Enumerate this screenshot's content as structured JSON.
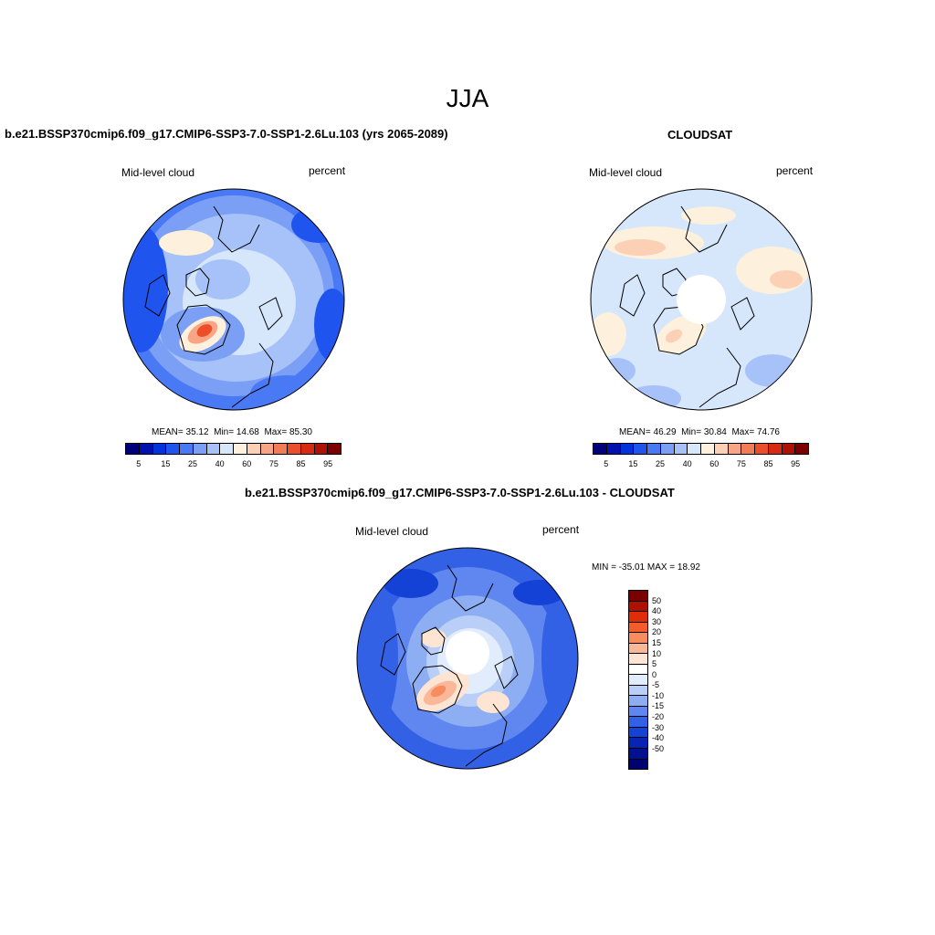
{
  "season": "JJA",
  "panels": {
    "model": {
      "title": "b.e21.BSSP370cmip6.f09_g17.CMIP6-SSP3-7.0-SSP1-2.6Lu.103 (yrs 2065-2089)",
      "variable": "Mid-level cloud",
      "units": "percent",
      "stats": {
        "mean_label": "MEAN=",
        "mean": "35.12",
        "min_label": "Min=",
        "min": "14.68",
        "max_label": "Max=",
        "max": "85.30"
      }
    },
    "obs": {
      "title": "CLOUDSAT",
      "variable": "Mid-level cloud",
      "units": "percent",
      "stats": {
        "mean_label": "MEAN=",
        "mean": "46.29",
        "min_label": "Min=",
        "min": "30.84",
        "max_label": "Max=",
        "max": "74.76"
      }
    },
    "diff": {
      "title": "b.e21.BSSP370cmip6.f09_g17.CMIP6-SSP3-7.0-SSP1-2.6Lu.103 - CLOUDSAT",
      "variable": "Mid-level cloud",
      "units": "percent",
      "minmax": "MIN = -35.01 MAX =  18.92"
    }
  },
  "colorbar_main": {
    "colors": [
      "#00007a",
      "#0011b0",
      "#0033d9",
      "#1f55ee",
      "#4a79f5",
      "#7a9ff5",
      "#a7c2f8",
      "#d6e6fb",
      "#fdf0dc",
      "#fcd0b5",
      "#f7a584",
      "#f27c57",
      "#ec4e2a",
      "#d82a10",
      "#ad1205",
      "#7a0000"
    ],
    "labels": [
      "5",
      "15",
      "25",
      "40",
      "60",
      "75",
      "85",
      "95"
    ]
  },
  "colorbar_diff": {
    "colors": [
      "#7a0000",
      "#b01002",
      "#e02c08",
      "#f35d2b",
      "#f78c5e",
      "#fab898",
      "#fde4d3",
      "#ffffff",
      "#e1ecfc",
      "#b9cff8",
      "#8eaef3",
      "#5f87ef",
      "#3361e6",
      "#1441d6",
      "#0724b5",
      "#00108f",
      "#000070"
    ],
    "labels": [
      "50",
      "40",
      "30",
      "20",
      "15",
      "10",
      "5",
      "0",
      "-5",
      "-10",
      "-15",
      "-20",
      "-30",
      "-40",
      "-50"
    ]
  }
}
